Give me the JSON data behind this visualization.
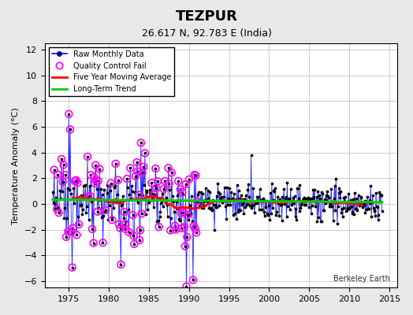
{
  "title": "TEZPUR",
  "subtitle": "26.617 N, 92.783 E (India)",
  "ylabel": "Temperature Anomaly (°C)",
  "attribution": "Berkeley Earth",
  "xlim": [
    1972,
    2016
  ],
  "ylim": [
    -6.5,
    12.5
  ],
  "yticks": [
    -6,
    -4,
    -2,
    0,
    2,
    4,
    6,
    8,
    10,
    12
  ],
  "xticks": [
    1975,
    1980,
    1985,
    1990,
    1995,
    2000,
    2005,
    2010,
    2015
  ],
  "bg_color": "#e8e8e8",
  "plot_bg_color": "#ffffff",
  "grid_color": "#cccccc",
  "raw_line_color": "#0000ff",
  "raw_dot_color": "#000000",
  "qc_fail_color": "#ff00ff",
  "moving_avg_color": "#ff0000",
  "trend_color": "#00cc00",
  "seed": 42
}
